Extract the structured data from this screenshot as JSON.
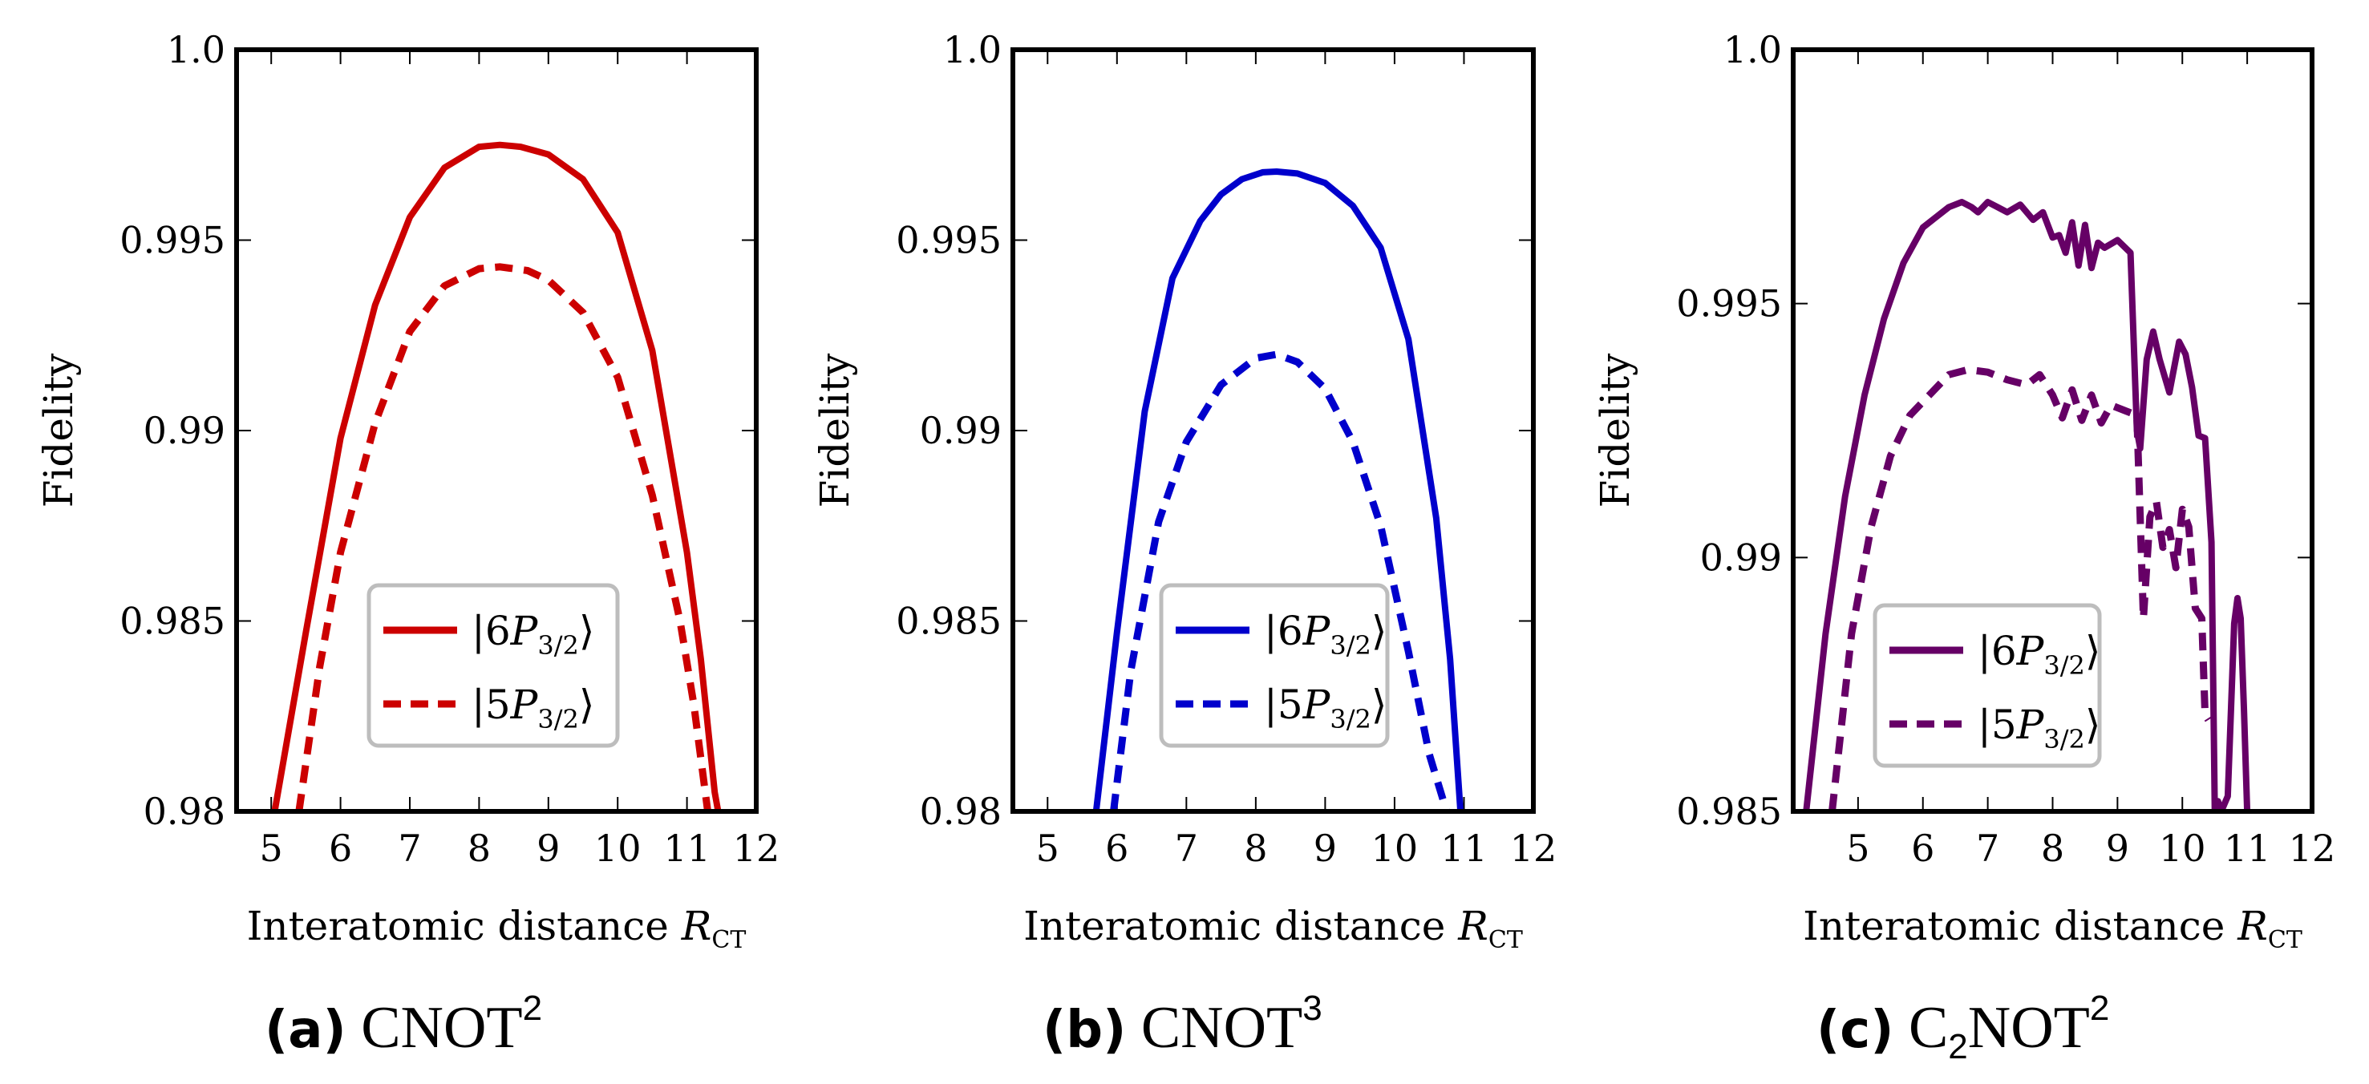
{
  "chart_data": [
    {
      "type": "line",
      "panel_label": "(a)",
      "caption_main": "CNOT",
      "caption_sup": "2",
      "xlabel": "Interatomic distance ",
      "xlabel_var": "R",
      "xlabel_sub": "CT",
      "ylabel": "Fidelity",
      "xlim": [
        4.5,
        12
      ],
      "ylim": [
        0.98,
        1.0
      ],
      "xticks": [
        5,
        6,
        7,
        8,
        9,
        10,
        11,
        12
      ],
      "yticks": [
        0.98,
        0.985,
        0.99,
        0.995,
        1.0
      ],
      "ytick_labels": [
        "0.98",
        "0.985",
        "0.99",
        "0.995",
        "1.0"
      ],
      "color": "#cc0000",
      "legend_position": "center-bottom",
      "series": [
        {
          "name": "|6P3/2⟩",
          "label_n": "6",
          "style": "solid",
          "x": [
            5.05,
            5.5,
            6,
            6.5,
            7,
            7.5,
            8,
            8.3,
            8.6,
            9,
            9.5,
            10,
            10.5,
            11,
            11.2,
            11.4,
            11.45
          ],
          "y": [
            0.98,
            0.9847,
            0.9898,
            0.9933,
            0.9956,
            0.9969,
            0.99745,
            0.9975,
            0.99745,
            0.99725,
            0.9966,
            0.9952,
            0.9921,
            0.9868,
            0.984,
            0.9805,
            0.98
          ]
        },
        {
          "name": "|5P3/2⟩",
          "label_n": "5",
          "style": "dashed",
          "x": [
            5.4,
            5.7,
            6,
            6.5,
            7,
            7.5,
            8,
            8.3,
            8.7,
            9,
            9.5,
            10,
            10.5,
            10.9,
            11.1,
            11.3
          ],
          "y": [
            0.98,
            0.9838,
            0.9868,
            0.9902,
            0.9926,
            0.9938,
            0.99425,
            0.9943,
            0.9942,
            0.99395,
            0.9931,
            0.9914,
            0.9883,
            0.985,
            0.9828,
            0.98
          ]
        }
      ]
    },
    {
      "type": "line",
      "panel_label": "(b)",
      "caption_main": "CNOT",
      "caption_sup": "3",
      "xlabel": "Interatomic distance ",
      "xlabel_var": "R",
      "xlabel_sub": "CT",
      "ylabel": "Fidelity",
      "xlim": [
        4.5,
        12
      ],
      "ylim": [
        0.98,
        1.0
      ],
      "xticks": [
        5,
        6,
        7,
        8,
        9,
        10,
        11,
        12
      ],
      "yticks": [
        0.98,
        0.985,
        0.99,
        0.995,
        1.0
      ],
      "ytick_labels": [
        "0.98",
        "0.985",
        "0.99",
        "0.995",
        "1.0"
      ],
      "color": "#0000cc",
      "legend_position": "center-bottom",
      "series": [
        {
          "name": "|6P3/2⟩",
          "label_n": "6",
          "style": "solid",
          "x": [
            5.7,
            6,
            6.4,
            6.8,
            7.2,
            7.5,
            7.8,
            8.1,
            8.3,
            8.6,
            9,
            9.4,
            9.8,
            10.2,
            10.6,
            10.8,
            10.95
          ],
          "y": [
            0.98,
            0.9847,
            0.9905,
            0.994,
            0.9955,
            0.9962,
            0.9966,
            0.99678,
            0.9968,
            0.99675,
            0.9965,
            0.9959,
            0.9948,
            0.9924,
            0.9877,
            0.984,
            0.98
          ]
        },
        {
          "name": "|5P3/2⟩",
          "label_n": "5",
          "style": "dashed",
          "x": [
            5.95,
            6.2,
            6.6,
            7,
            7.5,
            8,
            8.3,
            8.6,
            9,
            9.4,
            9.8,
            10.2,
            10.5,
            10.75
          ],
          "y": [
            0.98,
            0.9837,
            0.9876,
            0.9897,
            0.9912,
            0.9919,
            0.992,
            0.9918,
            0.9911,
            0.9897,
            0.9875,
            0.9842,
            0.9815,
            0.98
          ]
        }
      ]
    },
    {
      "type": "line",
      "panel_label": "(c)",
      "caption_main": "C",
      "caption_sub": "2",
      "caption_main2": "NOT",
      "caption_sup": "2",
      "xlabel": "Interatomic distance ",
      "xlabel_var": "R",
      "xlabel_sub": "CT",
      "ylabel": "Fidelity",
      "xlim": [
        4,
        12
      ],
      "ylim": [
        0.985,
        1.0
      ],
      "xticks": [
        5,
        6,
        7,
        8,
        9,
        10,
        11,
        12
      ],
      "yticks": [
        0.985,
        0.99,
        0.995,
        1.0
      ],
      "ytick_labels": [
        "0.985",
        "0.99",
        "0.995",
        "1.0"
      ],
      "color": "#660066",
      "legend_position": "left-bottom",
      "series": [
        {
          "name": "|6P3/2⟩",
          "label_n": "6",
          "style": "solid",
          "x": [
            4.2,
            4.5,
            4.8,
            5.1,
            5.4,
            5.7,
            6.0,
            6.2,
            6.4,
            6.6,
            6.75,
            6.85,
            7.0,
            7.15,
            7.3,
            7.5,
            7.7,
            7.85,
            8.0,
            8.1,
            8.2,
            8.3,
            8.4,
            8.5,
            8.6,
            8.7,
            8.8,
            9.0,
            9.2,
            9.3,
            9.35,
            9.45,
            9.55,
            9.65,
            9.8,
            9.95,
            10.05,
            10.15,
            10.25,
            10.35,
            10.45,
            10.5,
            10.55,
            10.6,
            10.7,
            10.8,
            10.85,
            10.9,
            10.95,
            11.0
          ],
          "y": [
            0.985,
            0.9885,
            0.9912,
            0.9932,
            0.9947,
            0.9958,
            0.9965,
            0.9967,
            0.9969,
            0.997,
            0.9969,
            0.9968,
            0.997,
            0.9969,
            0.9968,
            0.99695,
            0.99665,
            0.9968,
            0.9963,
            0.99635,
            0.996,
            0.9966,
            0.99575,
            0.99655,
            0.9957,
            0.9962,
            0.9961,
            0.99625,
            0.996,
            0.9925,
            0.99215,
            0.9939,
            0.99445,
            0.9939,
            0.99325,
            0.99425,
            0.994,
            0.99335,
            0.9924,
            0.99235,
            0.9903,
            0.985,
            0.9852,
            0.985,
            0.9853,
            0.9887,
            0.9892,
            0.9888,
            0.987,
            0.985
          ]
        },
        {
          "name": "|5P3/2⟩",
          "label_n": "5",
          "style": "dashed",
          "x": [
            4.6,
            4.9,
            5.2,
            5.5,
            5.8,
            6.1,
            6.4,
            6.7,
            7.0,
            7.3,
            7.6,
            7.8,
            8.0,
            8.15,
            8.3,
            8.45,
            8.6,
            8.75,
            8.9,
            9.1,
            9.3,
            9.4,
            9.5,
            9.6,
            9.7,
            9.8,
            9.9,
            10.0,
            10.1,
            10.2,
            10.3,
            10.35,
            10.4
          ],
          "y": [
            0.985,
            0.9885,
            0.9906,
            0.992,
            0.9928,
            0.9932,
            0.9936,
            0.9937,
            0.99365,
            0.9935,
            0.9934,
            0.9936,
            0.9932,
            0.99275,
            0.9933,
            0.9927,
            0.9932,
            0.99265,
            0.993,
            0.9929,
            0.9928,
            0.9888,
            0.9908,
            0.9911,
            0.9902,
            0.99055,
            0.9898,
            0.99095,
            0.9906,
            0.989,
            0.9888,
            0.9869,
            0.9868
          ]
        }
      ]
    }
  ]
}
